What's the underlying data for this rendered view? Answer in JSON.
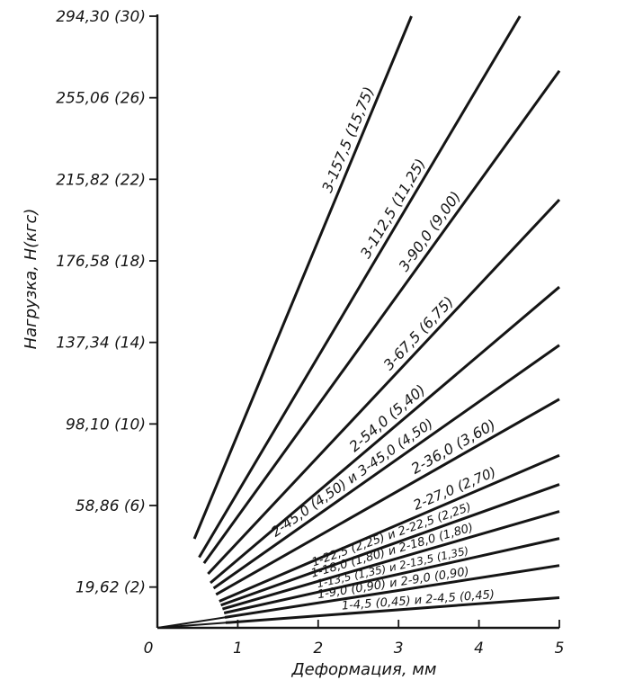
{
  "chart_data": {
    "type": "line",
    "title": "",
    "xlabel": "Деформация, мм",
    "ylabel": "Нагрузка, Н(кгс)",
    "xlim": [
      0,
      5
    ],
    "ylim": [
      0,
      294.3
    ],
    "x_ticks": [
      {
        "value": 0,
        "label": "0"
      },
      {
        "value": 1,
        "label": "1"
      },
      {
        "value": 2,
        "label": "2"
      },
      {
        "value": 3,
        "label": "3"
      },
      {
        "value": 4,
        "label": "4"
      },
      {
        "value": 5,
        "label": "5"
      }
    ],
    "y_ticks": [
      {
        "value": 19.62,
        "label": "19,62 (2)"
      },
      {
        "value": 58.86,
        "label": "58,86 (6)"
      },
      {
        "value": 98.1,
        "label": "98,10 (10)"
      },
      {
        "value": 137.34,
        "label": "137,34 (14)"
      },
      {
        "value": 176.58,
        "label": "176,58 (18)"
      },
      {
        "value": 215.82,
        "label": "215,82 (22)"
      },
      {
        "value": 255.06,
        "label": "255,06 (26)"
      },
      {
        "value": 294.3,
        "label": "294,30 (30)"
      }
    ],
    "grid": false,
    "legend": "none",
    "series": [
      {
        "name": "3-157,5 (15,75)",
        "x": [
          0,
          3.16
        ],
        "y": [
          0,
          294.3
        ]
      },
      {
        "name": "3-112,5 (11,25)",
        "x": [
          0,
          4.51
        ],
        "y": [
          0,
          294.3
        ]
      },
      {
        "name": "3-90,0 (9,00)",
        "x": [
          0,
          5
        ],
        "y": [
          0,
          268
        ]
      },
      {
        "name": "3-67,5 (6,75)",
        "x": [
          0,
          5
        ],
        "y": [
          0,
          206
        ]
      },
      {
        "name": "2-54,0 (5,40)",
        "x": [
          0,
          5
        ],
        "y": [
          0,
          164
        ]
      },
      {
        "name": "2-45,0 (4,50) и 3-45,0 (4,50)",
        "x": [
          0,
          5
        ],
        "y": [
          0,
          136
        ]
      },
      {
        "name": "2-36,0 (3,60)",
        "x": [
          0,
          5
        ],
        "y": [
          0,
          110
        ]
      },
      {
        "name": "2-27,0 (2,70)",
        "x": [
          0,
          5
        ],
        "y": [
          0,
          83
        ]
      },
      {
        "name": "1-22,5 (2,25) и 2-22,5 (2,25)",
        "x": [
          0,
          5
        ],
        "y": [
          0,
          69
        ]
      },
      {
        "name": "1-18,0 (1,80) и 2-18,0 (1,80)",
        "x": [
          0,
          5
        ],
        "y": [
          0,
          56
        ]
      },
      {
        "name": "1-13,5 (1,35) и 2-13,5 (1,35)",
        "x": [
          0,
          5
        ],
        "y": [
          0,
          43
        ]
      },
      {
        "name": "1-9,0 (0,90) и 2-9,0 (0,90)",
        "x": [
          0,
          5
        ],
        "y": [
          0,
          30
        ]
      },
      {
        "name": "1-4,5 (0,45) и 2-4,5 (0,45)",
        "x": [
          0,
          5
        ],
        "y": [
          0,
          14.5
        ]
      }
    ]
  }
}
